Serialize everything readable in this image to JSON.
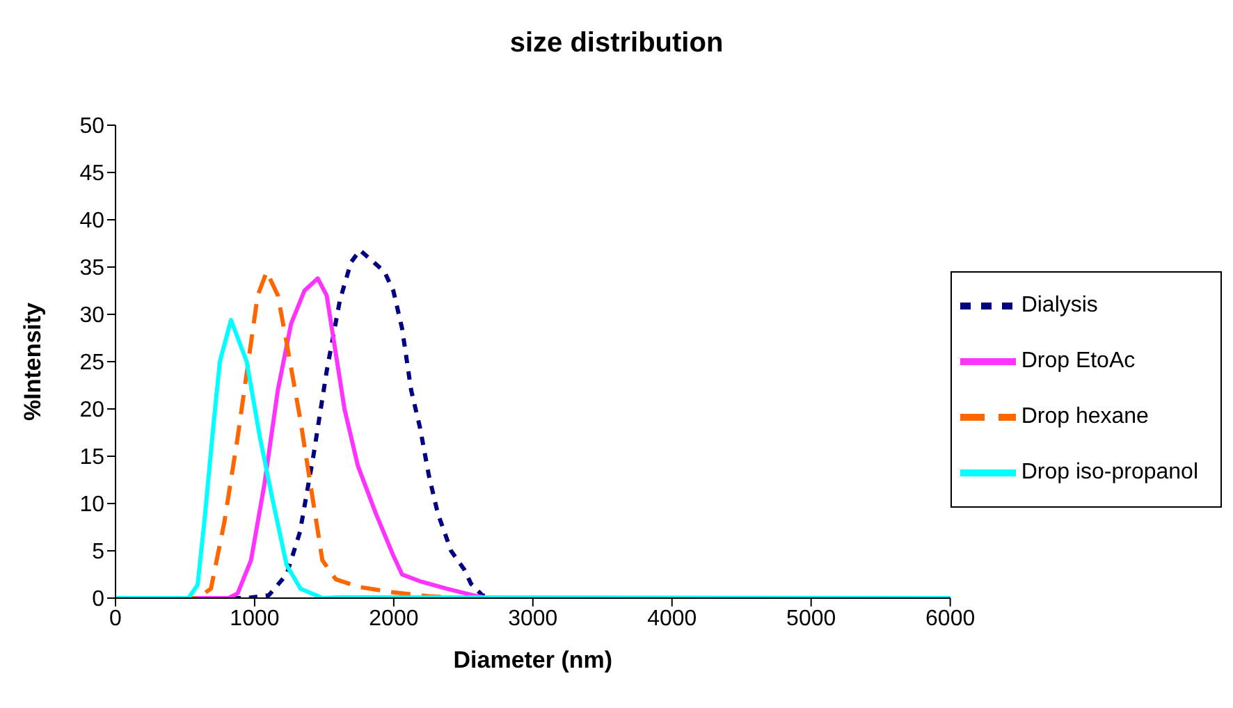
{
  "chart_data": {
    "type": "line",
    "title": "size distribution",
    "xlabel": "Diameter (nm)",
    "ylabel": "%Intensity",
    "xlim": [
      0,
      6000
    ],
    "xticks": [
      0,
      1000,
      2000,
      3000,
      4000,
      5000,
      6000
    ],
    "ylim": [
      0,
      50
    ],
    "yticks": [
      0,
      5,
      10,
      15,
      20,
      25,
      30,
      35,
      40,
      45,
      50
    ],
    "grid": false,
    "legend": "right",
    "marker": "none",
    "series": [
      {
        "name": "Dialysis",
        "color": "#000080",
        "line_style": "dotted",
        "x": [
          0,
          943,
          1102,
          1230,
          1326,
          1422,
          1518,
          1613,
          1693,
          1757,
          1933,
          1997,
          2060,
          2125,
          2189,
          2252,
          2316,
          2412,
          2508,
          2556,
          2636,
          2732,
          6000
        ],
        "values": [
          0,
          0,
          0.3,
          2.5,
          7,
          15,
          24,
          31.5,
          35.5,
          36.8,
          34.5,
          32.5,
          28.5,
          22,
          18,
          13,
          9,
          5,
          3,
          1.5,
          0.3,
          0,
          0
        ]
      },
      {
        "name": "Drop EtoAc",
        "color": "#ff33ff",
        "line_style": "solid",
        "x": [
          0,
          814,
          878,
          974,
          1070,
          1167,
          1262,
          1358,
          1454,
          1518,
          1582,
          1646,
          1742,
          1870,
          1997,
          2060,
          2185,
          2380,
          2570,
          2670,
          6000
        ],
        "values": [
          0,
          0,
          0.5,
          4,
          12,
          22,
          29,
          32.5,
          33.8,
          32,
          26,
          20,
          14,
          9,
          4.5,
          2.5,
          1.8,
          1,
          0.3,
          0,
          0
        ]
      },
      {
        "name": "Drop hexane",
        "color": "#ff6600",
        "line_style": "dashed",
        "x": [
          0,
          590,
          686,
          782,
          878,
          974,
          1022,
          1087,
          1167,
          1230,
          1327,
          1423,
          1487,
          1583,
          1742,
          2000,
          2250,
          2510,
          6000
        ],
        "values": [
          0,
          0,
          1,
          8,
          17,
          27,
          32,
          34.5,
          32,
          27,
          19,
          10,
          4,
          2,
          1.2,
          0.6,
          0.2,
          0,
          0
        ]
      },
      {
        "name": "Drop iso-propanol",
        "color": "#00ffff",
        "line_style": "solid",
        "x": [
          0,
          525,
          590,
          638,
          702,
          750,
          830,
          943,
          1038,
          1135,
          1230,
          1330,
          1490,
          1615,
          6000
        ],
        "values": [
          0,
          0,
          1.4,
          8,
          18,
          25,
          29.4,
          25,
          17,
          10,
          3.5,
          1,
          0,
          0.1,
          0
        ]
      }
    ]
  }
}
